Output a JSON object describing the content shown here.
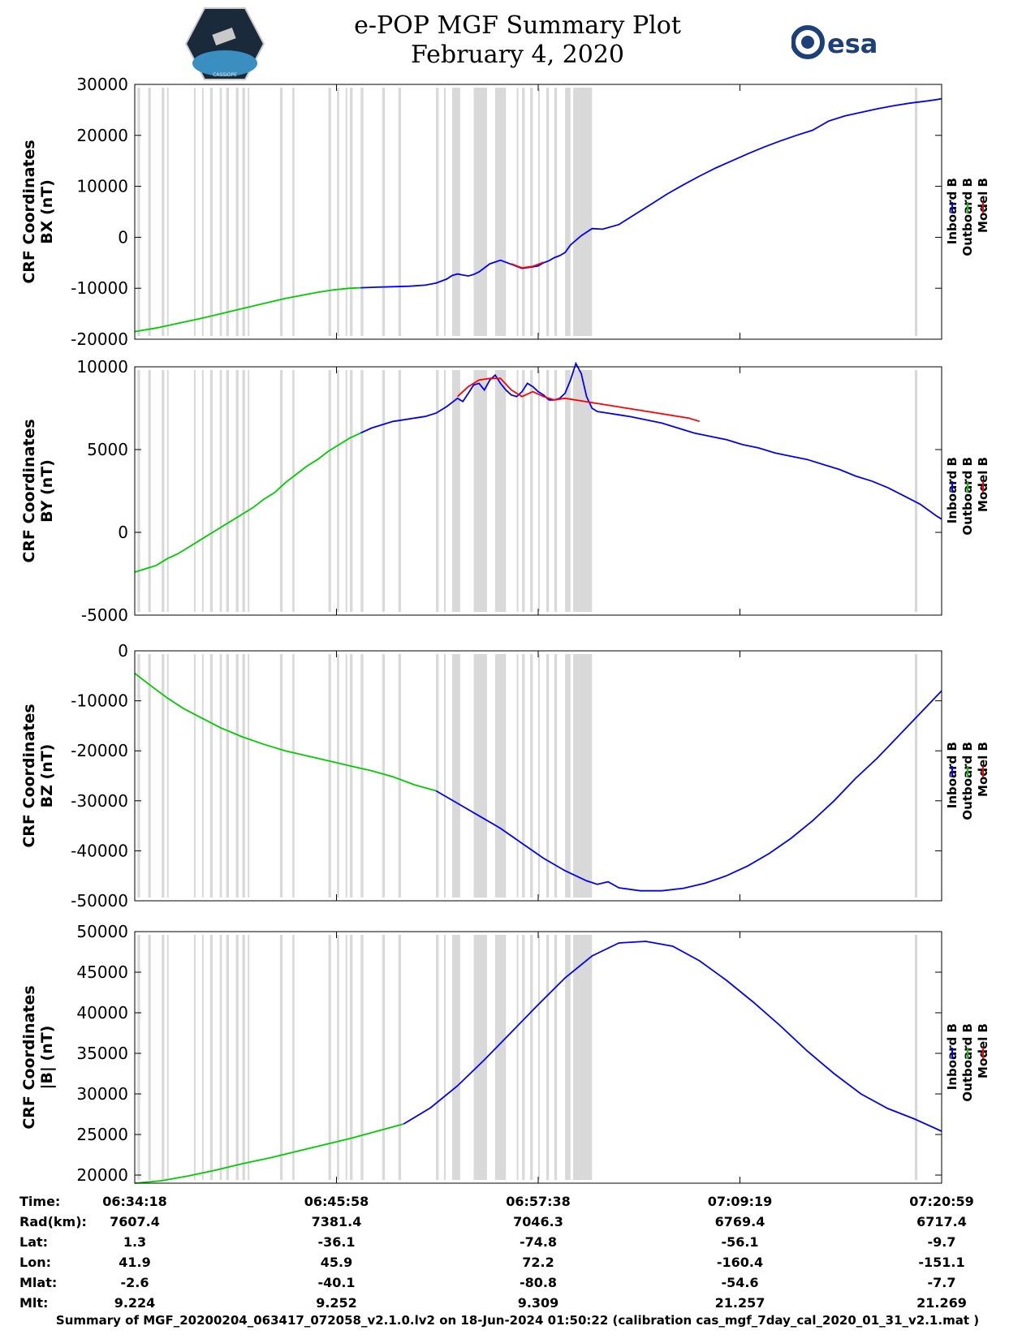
{
  "title": {
    "line1": "e-POP MGF Summary Plot",
    "line2": "February 4, 2020"
  },
  "logos": {
    "cassiope_text": "CASSIOPE",
    "esa_text": "esa"
  },
  "legend": {
    "entries": [
      {
        "name": "Inboard B",
        "color": "#0000ff"
      },
      {
        "name": "Outboard B",
        "color": "#00cc00"
      },
      {
        "name": "Model B",
        "color": "#ff0000"
      }
    ]
  },
  "chart_data": [
    {
      "type": "line",
      "ylabel": [
        "CRF Coordinates",
        "BX (nT)"
      ],
      "ylim": [
        -20000,
        30000
      ],
      "yticks": [
        30000,
        20000,
        10000,
        0,
        -10000,
        -20000
      ],
      "series": [
        {
          "name": "Outboard B",
          "color": "#00cc00",
          "x": [
            0,
            40,
            80,
            120,
            160,
            200,
            240,
            280,
            300,
            340,
            370,
            400,
            420
          ],
          "y": [
            -18500,
            -17800,
            -16900,
            -16000,
            -15000,
            -14000,
            -13000,
            -12000,
            -11600,
            -10800,
            -10300,
            -10000,
            -9900
          ]
        },
        {
          "name": "Inboard B",
          "color": "#0000ff",
          "x": [
            420,
            450,
            480,
            510,
            540,
            560,
            580,
            590,
            600,
            610,
            620,
            630,
            640,
            650,
            660,
            680,
            700,
            720,
            740,
            750,
            760,
            770,
            780,
            790,
            800,
            810,
            830,
            850,
            870,
            900,
            930,
            960,
            990,
            1020,
            1050,
            1080,
            1110,
            1140,
            1170,
            1200,
            1230,
            1260,
            1290,
            1320,
            1350,
            1380,
            1410,
            1440,
            1470,
            1490,
            1500
          ],
          "y": [
            -9900,
            -9800,
            -9700,
            -9600,
            -9400,
            -9000,
            -8200,
            -7500,
            -7200,
            -7400,
            -7600,
            -7300,
            -6800,
            -6000,
            -5200,
            -4500,
            -5300,
            -6100,
            -5800,
            -5600,
            -5000,
            -4600,
            -4000,
            -3600,
            -3000,
            -1500,
            300,
            1700,
            1600,
            2500,
            4500,
            6500,
            8500,
            10300,
            12000,
            13600,
            15000,
            16400,
            17700,
            18900,
            20000,
            21000,
            22800,
            23800,
            24500,
            25200,
            25800,
            26300,
            26700,
            27000,
            27200
          ]
        },
        {
          "name": "Model B",
          "color": "#ff0000",
          "x": [
            700,
            720,
            740,
            760
          ],
          "y": [
            -5200,
            -6000,
            -5700,
            -4900
          ]
        }
      ],
      "grey_bands_x": [
        [
          5,
          10
        ],
        [
          25,
          30
        ],
        [
          50,
          55
        ],
        [
          60,
          63
        ],
        [
          110,
          113
        ],
        [
          125,
          128
        ],
        [
          140,
          145
        ],
        [
          158,
          162
        ],
        [
          170,
          175
        ],
        [
          188,
          193
        ],
        [
          200,
          205
        ],
        [
          210,
          212
        ],
        [
          270,
          275
        ],
        [
          293,
          297
        ],
        [
          360,
          365
        ],
        [
          376,
          380
        ],
        [
          392,
          395
        ],
        [
          400,
          405
        ],
        [
          420,
          425
        ],
        [
          460,
          465
        ],
        [
          490,
          495
        ],
        [
          560,
          565
        ],
        [
          575,
          578
        ],
        [
          590,
          605
        ],
        [
          630,
          655
        ],
        [
          670,
          690
        ],
        [
          710,
          713
        ],
        [
          720,
          725
        ],
        [
          735,
          740
        ],
        [
          750,
          752
        ],
        [
          765,
          770
        ],
        [
          780,
          785
        ],
        [
          800,
          810
        ],
        [
          815,
          850
        ],
        [
          1450,
          1455
        ]
      ]
    },
    {
      "type": "line",
      "ylabel": [
        "CRF Coordinates",
        "BY (nT)"
      ],
      "ylim": [
        -5000,
        10000
      ],
      "yticks": [
        10000,
        5000,
        0,
        -5000
      ],
      "series": [
        {
          "name": "Outboard B",
          "color": "#00cc00",
          "x": [
            0,
            20,
            40,
            60,
            80,
            100,
            120,
            140,
            160,
            180,
            200,
            220,
            240,
            260,
            280,
            300,
            320,
            340,
            360,
            380,
            400,
            420
          ],
          "y": [
            -2400,
            -2200,
            -2000,
            -1600,
            -1300,
            -900,
            -500,
            -100,
            300,
            700,
            1100,
            1500,
            2000,
            2400,
            3000,
            3500,
            4000,
            4400,
            4900,
            5300,
            5700,
            6000
          ]
        },
        {
          "name": "Inboard B",
          "color": "#0000ff",
          "x": [
            420,
            440,
            460,
            480,
            500,
            520,
            540,
            560,
            580,
            600,
            610,
            620,
            630,
            640,
            650,
            660,
            670,
            680,
            690,
            700,
            710,
            720,
            730,
            740,
            750,
            760,
            770,
            780,
            790,
            800,
            810,
            820,
            830,
            840,
            850,
            860,
            880,
            900,
            920,
            950,
            980,
            1010,
            1040,
            1070,
            1100,
            1130,
            1160,
            1190,
            1220,
            1250,
            1280,
            1310,
            1340,
            1370,
            1400,
            1430,
            1460,
            1490,
            1500
          ],
          "y": [
            6000,
            6300,
            6500,
            6700,
            6800,
            6900,
            7000,
            7200,
            7600,
            8100,
            7900,
            8400,
            8900,
            9000,
            8600,
            9200,
            9500,
            9000,
            8600,
            8300,
            8200,
            8500,
            9000,
            8800,
            8500,
            8300,
            8000,
            8000,
            8100,
            8400,
            9200,
            10200,
            9600,
            8200,
            7500,
            7300,
            7200,
            7100,
            7000,
            6800,
            6600,
            6300,
            6000,
            5800,
            5600,
            5300,
            5100,
            4800,
            4600,
            4400,
            4100,
            3800,
            3400,
            3100,
            2700,
            2200,
            1700,
            1000,
            800
          ]
        },
        {
          "name": "Model B",
          "color": "#ff0000",
          "x": [
            600,
            620,
            640,
            660,
            680,
            700,
            720,
            740,
            760,
            780,
            800,
            1030,
            1050
          ],
          "y": [
            8200,
            8800,
            9200,
            9300,
            9300,
            8600,
            8200,
            8500,
            8200,
            8000,
            8100,
            6900,
            6700
          ]
        }
      ],
      "grey_bands_x": [
        [
          5,
          10
        ],
        [
          25,
          30
        ],
        [
          50,
          55
        ],
        [
          60,
          63
        ],
        [
          110,
          113
        ],
        [
          125,
          128
        ],
        [
          140,
          145
        ],
        [
          158,
          162
        ],
        [
          170,
          175
        ],
        [
          188,
          193
        ],
        [
          200,
          205
        ],
        [
          210,
          212
        ],
        [
          270,
          275
        ],
        [
          293,
          297
        ],
        [
          360,
          365
        ],
        [
          376,
          380
        ],
        [
          392,
          395
        ],
        [
          400,
          405
        ],
        [
          420,
          425
        ],
        [
          460,
          465
        ],
        [
          490,
          495
        ],
        [
          560,
          565
        ],
        [
          575,
          578
        ],
        [
          590,
          605
        ],
        [
          630,
          655
        ],
        [
          670,
          690
        ],
        [
          710,
          713
        ],
        [
          720,
          725
        ],
        [
          735,
          740
        ],
        [
          750,
          752
        ],
        [
          765,
          770
        ],
        [
          780,
          785
        ],
        [
          800,
          810
        ],
        [
          815,
          850
        ],
        [
          1450,
          1455
        ]
      ]
    },
    {
      "type": "line",
      "ylabel": [
        "CRF Coordinates",
        "BZ (nT)"
      ],
      "ylim": [
        -50000,
        0
      ],
      "yticks": [
        0,
        -10000,
        -20000,
        -30000,
        -40000,
        -50000
      ],
      "series": [
        {
          "name": "Outboard B",
          "color": "#00cc00",
          "x": [
            0,
            30,
            60,
            90,
            120,
            160,
            200,
            240,
            280,
            320,
            360,
            400,
            440,
            480,
            520,
            560
          ],
          "y": [
            -4500,
            -7000,
            -9400,
            -11500,
            -13200,
            -15400,
            -17200,
            -18700,
            -20000,
            -21000,
            -22000,
            -23000,
            -24000,
            -25200,
            -26800,
            -28000
          ]
        },
        {
          "name": "Inboard B",
          "color": "#0000ff",
          "x": [
            560,
            600,
            640,
            680,
            720,
            760,
            800,
            840,
            860,
            880,
            900,
            940,
            980,
            1020,
            1060,
            1100,
            1140,
            1180,
            1220,
            1260,
            1300,
            1340,
            1380,
            1420,
            1460,
            1500
          ],
          "y": [
            -28000,
            -30500,
            -33000,
            -35500,
            -38500,
            -41500,
            -44000,
            -46000,
            -46700,
            -46200,
            -47400,
            -48000,
            -48000,
            -47500,
            -46500,
            -45000,
            -43000,
            -40500,
            -37500,
            -34000,
            -30000,
            -25500,
            -21500,
            -17000,
            -12500,
            -8000
          ]
        }
      ],
      "grey_bands_x": [
        [
          5,
          10
        ],
        [
          25,
          30
        ],
        [
          50,
          55
        ],
        [
          60,
          63
        ],
        [
          110,
          113
        ],
        [
          125,
          128
        ],
        [
          140,
          145
        ],
        [
          158,
          162
        ],
        [
          170,
          175
        ],
        [
          188,
          193
        ],
        [
          200,
          205
        ],
        [
          210,
          212
        ],
        [
          270,
          275
        ],
        [
          293,
          297
        ],
        [
          360,
          365
        ],
        [
          376,
          380
        ],
        [
          392,
          395
        ],
        [
          400,
          405
        ],
        [
          420,
          425
        ],
        [
          460,
          465
        ],
        [
          490,
          495
        ],
        [
          560,
          565
        ],
        [
          575,
          578
        ],
        [
          590,
          605
        ],
        [
          630,
          655
        ],
        [
          670,
          690
        ],
        [
          710,
          713
        ],
        [
          720,
          725
        ],
        [
          735,
          740
        ],
        [
          750,
          752
        ],
        [
          765,
          770
        ],
        [
          780,
          785
        ],
        [
          800,
          810
        ],
        [
          815,
          850
        ],
        [
          1450,
          1455
        ]
      ]
    },
    {
      "type": "line",
      "ylabel": [
        "CRF Coordinates",
        "|B| (nT)"
      ],
      "ylim": [
        19000,
        50000
      ],
      "yticks": [
        50000,
        45000,
        40000,
        35000,
        30000,
        25000,
        20000
      ],
      "series": [
        {
          "name": "Outboard B",
          "color": "#00cc00",
          "x": [
            0,
            50,
            100,
            150,
            200,
            250,
            300,
            350,
            400,
            450,
            500
          ],
          "y": [
            19000,
            19300,
            19900,
            20600,
            21400,
            22100,
            22900,
            23700,
            24500,
            25400,
            26300
          ]
        },
        {
          "name": "Inboard B",
          "color": "#0000ff",
          "x": [
            500,
            550,
            600,
            650,
            700,
            750,
            800,
            850,
            900,
            950,
            1000,
            1050,
            1100,
            1150,
            1200,
            1250,
            1300,
            1350,
            1400,
            1450,
            1500
          ],
          "y": [
            26300,
            28300,
            31000,
            34200,
            37600,
            41000,
            44300,
            47000,
            48600,
            48800,
            48200,
            46400,
            44000,
            41300,
            38400,
            35300,
            32500,
            30000,
            28200,
            26900,
            25400
          ]
        }
      ],
      "grey_bands_x": [
        [
          5,
          10
        ],
        [
          25,
          30
        ],
        [
          50,
          55
        ],
        [
          60,
          63
        ],
        [
          110,
          113
        ],
        [
          125,
          128
        ],
        [
          140,
          145
        ],
        [
          158,
          162
        ],
        [
          170,
          175
        ],
        [
          188,
          193
        ],
        [
          200,
          205
        ],
        [
          210,
          212
        ],
        [
          270,
          275
        ],
        [
          293,
          297
        ],
        [
          360,
          365
        ],
        [
          376,
          380
        ],
        [
          392,
          395
        ],
        [
          400,
          405
        ],
        [
          420,
          425
        ],
        [
          460,
          465
        ],
        [
          490,
          495
        ],
        [
          560,
          565
        ],
        [
          575,
          578
        ],
        [
          590,
          605
        ],
        [
          630,
          655
        ],
        [
          670,
          690
        ],
        [
          710,
          713
        ],
        [
          720,
          725
        ],
        [
          735,
          740
        ],
        [
          750,
          752
        ],
        [
          765,
          770
        ],
        [
          780,
          785
        ],
        [
          800,
          810
        ],
        [
          815,
          850
        ],
        [
          1450,
          1455
        ]
      ]
    }
  ],
  "x_axis": {
    "range_seconds": [
      0,
      1500
    ],
    "tick_seconds": [
      0,
      375,
      750,
      1125,
      1500
    ]
  },
  "info_table": {
    "rows": [
      {
        "label": "Time:",
        "values": [
          "06:34:18",
          "06:45:58",
          "06:57:38",
          "07:09:19",
          "07:20:59"
        ]
      },
      {
        "label": "Rad(km):",
        "values": [
          "7607.4",
          "7381.4",
          "7046.3",
          "6769.4",
          "6717.4"
        ]
      },
      {
        "label": "Lat:",
        "values": [
          "1.3",
          "-36.1",
          "-74.8",
          "-56.1",
          "-9.7"
        ]
      },
      {
        "label": "Lon:",
        "values": [
          "41.9",
          "45.9",
          "72.2",
          "-160.4",
          "-151.1"
        ]
      },
      {
        "label": "Mlat:",
        "values": [
          "-2.6",
          "-40.1",
          "-80.8",
          "-54.6",
          "-7.7"
        ]
      },
      {
        "label": "Mlt:",
        "values": [
          "9.224",
          "9.252",
          "9.309",
          "21.257",
          "21.269"
        ]
      }
    ]
  },
  "footer": "Summary of MGF_20200204_063417_072058_v2.1.0.lv2 on 18-Jun-2024 01:50:22 (calibration cas_mgf_7day_cal_2020_01_31_v2.1.mat )"
}
